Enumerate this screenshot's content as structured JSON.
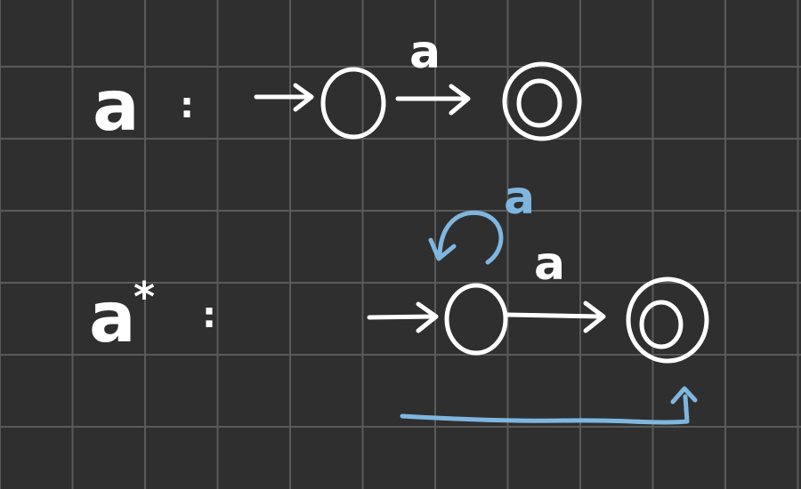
{
  "colors": {
    "background": "#2f2f2f",
    "grid": "#5a5a5a",
    "ink": "#ffffff",
    "accent": "#7fb6e0"
  },
  "diagram_a": {
    "expression": "a",
    "separator": ":",
    "transition_label": "a"
  },
  "diagram_a_star": {
    "expression": "a",
    "superscript": "*",
    "separator": ":",
    "loop_label": "a",
    "transition_label": "a"
  }
}
